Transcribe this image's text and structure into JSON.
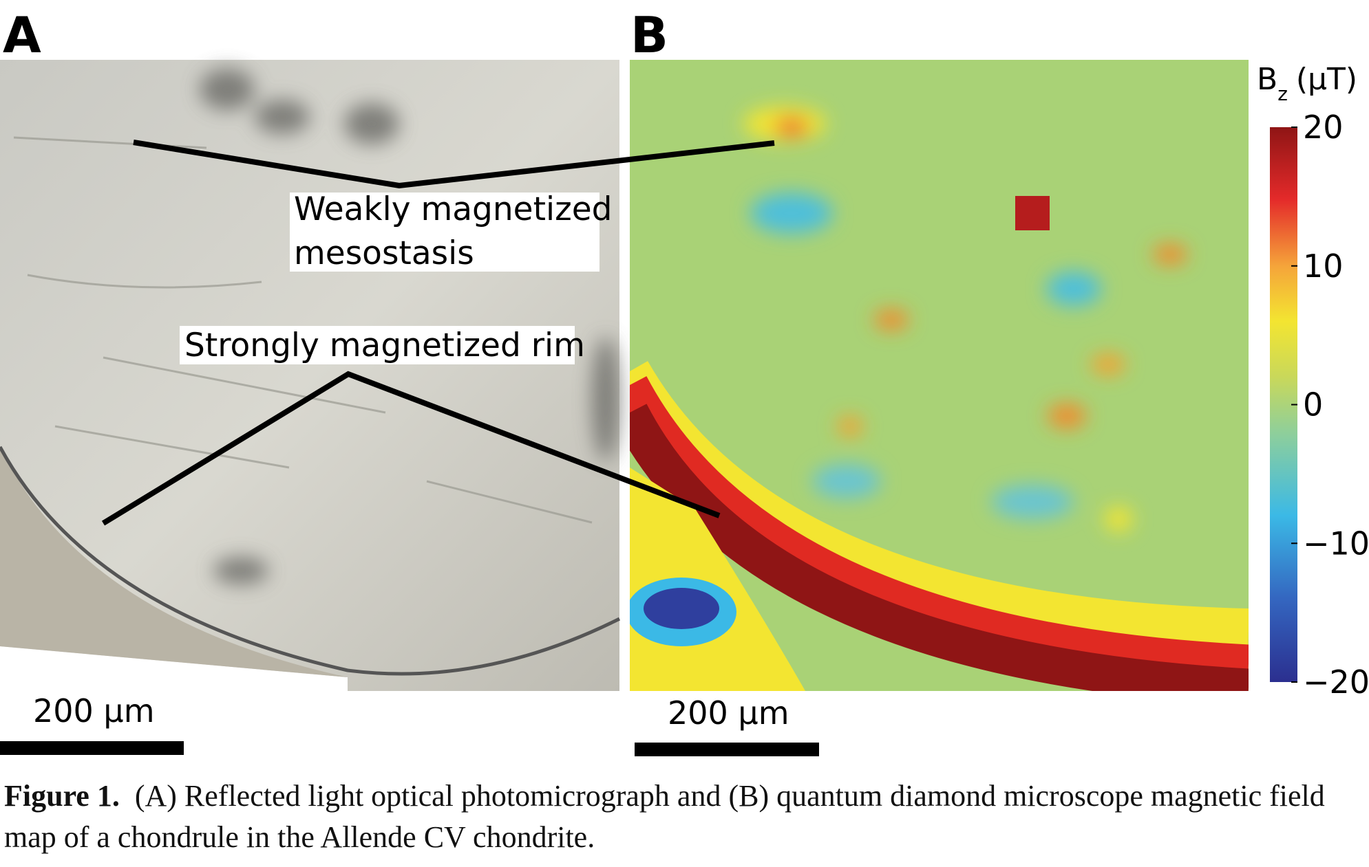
{
  "panels": [
    {
      "label": "A",
      "scale_bar": "200 μm"
    },
    {
      "label": "B",
      "scale_bar": "200 μm"
    }
  ],
  "annotations": [
    {
      "text_lines": [
        "Weakly magnetized",
        "mesostasis"
      ]
    },
    {
      "text_lines": [
        "Strongly magnetized rim"
      ]
    }
  ],
  "colorbar": {
    "symbol": "B",
    "subscript": "z",
    "unit": "(μT)",
    "lim": [
      -20,
      20
    ],
    "ticks": [
      20,
      10,
      0,
      {
        "value": -10,
        "label": "−10"
      },
      {
        "value": -20,
        "label": "−20"
      }
    ]
  },
  "caption": {
    "label": "Figure 1.",
    "text": "(A) Reflected light optical photomicrograph and (B) quantum diamond microscope magnetic field map of a chondrule in the Allende CV chondrite."
  }
}
